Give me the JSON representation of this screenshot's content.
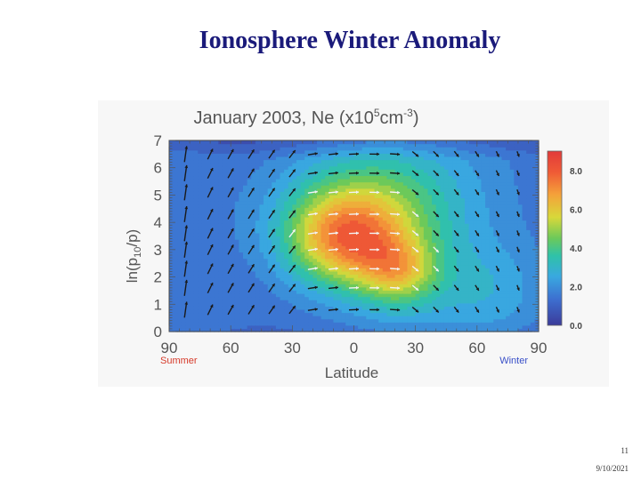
{
  "slide": {
    "title": "Ionosphere Winter Anomaly",
    "page_number": "11",
    "date": "9/10/2021"
  },
  "chart_data": {
    "type": "heatmap",
    "title_parts": [
      "January 2003, Ne (x10",
      "5",
      "cm",
      "-3",
      ")"
    ],
    "ylabel_parts": [
      "ln(p",
      "10",
      "/p)"
    ],
    "xlabel": "Latitude",
    "x_ticks": [
      -90,
      -60,
      -30,
      0,
      30,
      60,
      90
    ],
    "x_tick_labels": [
      "90",
      "60",
      "30",
      "0",
      "30",
      "60",
      "90"
    ],
    "y_ticks": [
      0,
      1,
      2,
      3,
      4,
      5,
      6,
      7
    ],
    "y_tick_labels": [
      "0",
      "1",
      "2",
      "3",
      "4",
      "5",
      "6",
      "7"
    ],
    "xlim": [
      -90,
      90
    ],
    "ylim": [
      0,
      7
    ],
    "hemisphere_labels": [
      {
        "text": "Summer",
        "at": -90,
        "color": "#d63a2a"
      },
      {
        "text": "Winter",
        "at": 90,
        "color": "#3a50c8"
      }
    ],
    "colorbar": {
      "ticks": [
        0.0,
        2.0,
        4.0,
        6.0,
        8.0
      ],
      "tick_labels": [
        "0.0",
        "2.0",
        "4.0",
        "6.0",
        "8.0"
      ],
      "range": [
        0,
        9
      ]
    },
    "density_peaks": [
      {
        "lat": -5,
        "z": 3.3,
        "amp": 4.4,
        "sigma_lat": 20,
        "sigma_z": 1.2
      },
      {
        "lat": 22,
        "z": 2.2,
        "amp": 3.2,
        "sigma_lat": 14,
        "sigma_z": 0.9
      },
      {
        "lat": 8,
        "z": 4.6,
        "amp": 2.8,
        "sigma_lat": 30,
        "sigma_z": 1.5
      },
      {
        "lat": 65,
        "z": 1.6,
        "amp": 1.0,
        "sigma_lat": 20,
        "sigma_z": 1.2
      }
    ],
    "background_level": 1.6,
    "arrow_grid": {
      "lats": [
        -82,
        -70,
        -60,
        -50,
        -40,
        -30,
        -20,
        -10,
        0,
        10,
        20,
        30,
        40,
        50,
        60,
        70,
        80
      ],
      "zs": [
        0.8,
        1.6,
        2.3,
        3.0,
        3.6,
        4.3,
        5.1,
        5.8,
        6.5
      ]
    }
  }
}
